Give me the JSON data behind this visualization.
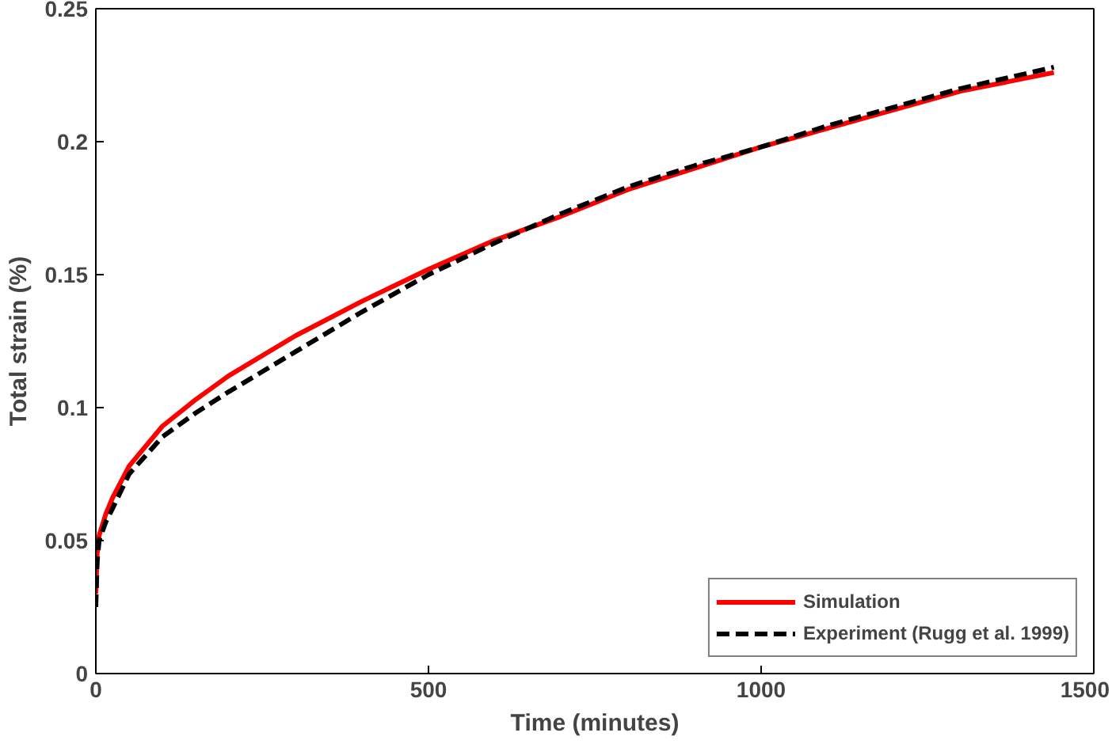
{
  "chart_data": {
    "type": "line",
    "xlabel": "Time (minutes)",
    "ylabel": "Total strain (%)",
    "xlim": [
      0,
      1500
    ],
    "ylim": [
      0,
      0.25
    ],
    "xticks": [
      0,
      500,
      1000,
      1500
    ],
    "yticks": [
      0,
      0.05,
      0.1,
      0.15,
      0.2,
      0.25
    ],
    "grid": false,
    "legend": "bottom right",
    "series": [
      {
        "name": "Simulation",
        "color": "#ff0000",
        "line_style": "solid",
        "x": [
          0,
          2,
          5,
          15,
          25,
          50,
          100,
          150,
          200,
          300,
          400,
          500,
          600,
          700,
          800,
          900,
          1000,
          1100,
          1200,
          1300,
          1440
        ],
        "values": [
          0.03,
          0.045,
          0.052,
          0.06,
          0.066,
          0.078,
          0.093,
          0.103,
          0.112,
          0.127,
          0.14,
          0.152,
          0.163,
          0.172,
          0.182,
          0.19,
          0.198,
          0.205,
          0.212,
          0.219,
          0.226
        ]
      },
      {
        "name": "Experiment (Rugg et al. 1999)",
        "color": "#000000",
        "line_style": "dashed",
        "x": [
          0,
          2,
          5,
          15,
          25,
          50,
          100,
          150,
          200,
          300,
          400,
          500,
          600,
          700,
          800,
          900,
          1000,
          1100,
          1200,
          1300,
          1440
        ],
        "values": [
          0.025,
          0.042,
          0.05,
          0.057,
          0.062,
          0.075,
          0.089,
          0.098,
          0.106,
          0.121,
          0.136,
          0.15,
          0.162,
          0.173,
          0.183,
          0.191,
          0.198,
          0.206,
          0.213,
          0.22,
          0.228
        ]
      }
    ]
  }
}
